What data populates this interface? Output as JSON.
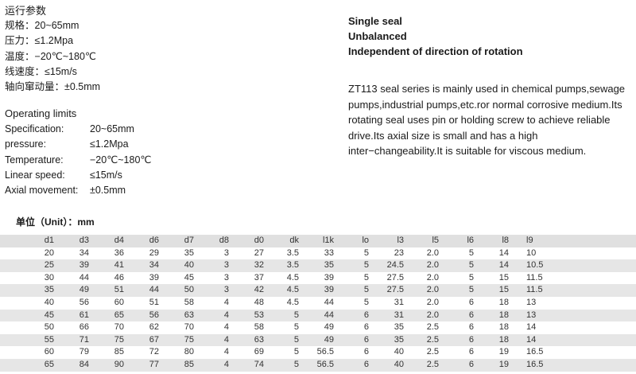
{
  "colors": {
    "page_bg": "#ffffff",
    "table_header_bg": "#e0e0e0",
    "table_band_bg": "#e6e6e6",
    "text": "#1a1a1a"
  },
  "cn_params": {
    "title": "运行参数",
    "rows": [
      {
        "label": "规格：",
        "value": "20~65mm"
      },
      {
        "label": "压力：",
        "value": "≤1.2Mpa"
      },
      {
        "label": "温度：",
        "value": "−20℃~180℃"
      },
      {
        "label": "线速度：",
        "value": "≤15m/s"
      },
      {
        "label": "轴向窜动量：",
        "value": "±0.5mm"
      }
    ]
  },
  "en_params": {
    "title": "Operating limits",
    "rows": [
      {
        "label": "Specification:",
        "value": "20~65mm"
      },
      {
        "label": "pressure:",
        "value": "≤1.2Mpa"
      },
      {
        "label": "Temperature:",
        "value": "−20℃~180℃"
      },
      {
        "label": "Linear speed:",
        "value": "≤15m/s"
      },
      {
        "label": "Axial movement:",
        "value": "±0.5mm"
      }
    ]
  },
  "right_info": {
    "features": [
      "Single seal",
      "Unbalanced",
      "Independent of direction of rotation"
    ],
    "description": "ZT113 seal series is mainly used in chemical pumps,sewage pumps,industrial pumps,etc.ror normal corrosive medium.Its rotating seal uses pin or holding screw to achieve reliable drive.Its axial size is small and has a high inter−changeability.It is suitable for viscous medium."
  },
  "table": {
    "unit_label": "单位（Unit）：mm",
    "headers": [
      "d1",
      "d3",
      "d4",
      "d6",
      "d7",
      "d8",
      "d0",
      "dk",
      "l1k",
      "lo",
      "l3",
      "l5",
      "l6",
      "l8",
      "l9"
    ],
    "rows": [
      [
        "20",
        "34",
        "36",
        "29",
        "35",
        "3",
        "27",
        "3.5",
        "33",
        "5",
        "23",
        "2.0",
        "5",
        "14",
        "10"
      ],
      [
        "25",
        "39",
        "41",
        "34",
        "40",
        "3",
        "32",
        "3.5",
        "35",
        "5",
        "24.5",
        "2.0",
        "5",
        "14",
        "10.5"
      ],
      [
        "30",
        "44",
        "46",
        "39",
        "45",
        "3",
        "37",
        "4.5",
        "39",
        "5",
        "27.5",
        "2.0",
        "5",
        "15",
        "11.5"
      ],
      [
        "35",
        "49",
        "51",
        "44",
        "50",
        "3",
        "42",
        "4.5",
        "39",
        "5",
        "27.5",
        "2.0",
        "5",
        "15",
        "11.5"
      ],
      [
        "40",
        "56",
        "60",
        "51",
        "58",
        "4",
        "48",
        "4.5",
        "44",
        "5",
        "31",
        "2.0",
        "6",
        "18",
        "13"
      ],
      [
        "45",
        "61",
        "65",
        "56",
        "63",
        "4",
        "53",
        "5",
        "44",
        "6",
        "31",
        "2.0",
        "6",
        "18",
        "13"
      ],
      [
        "50",
        "66",
        "70",
        "62",
        "70",
        "4",
        "58",
        "5",
        "49",
        "6",
        "35",
        "2.5",
        "6",
        "18",
        "14"
      ],
      [
        "55",
        "71",
        "75",
        "67",
        "75",
        "4",
        "63",
        "5",
        "49",
        "6",
        "35",
        "2.5",
        "6",
        "18",
        "14"
      ],
      [
        "60",
        "79",
        "85",
        "72",
        "80",
        "4",
        "69",
        "5",
        "56.5",
        "6",
        "40",
        "2.5",
        "6",
        "19",
        "16.5"
      ],
      [
        "65",
        "84",
        "90",
        "77",
        "85",
        "4",
        "74",
        "5",
        "56.5",
        "6",
        "40",
        "2.5",
        "6",
        "19",
        "16.5"
      ]
    ]
  }
}
